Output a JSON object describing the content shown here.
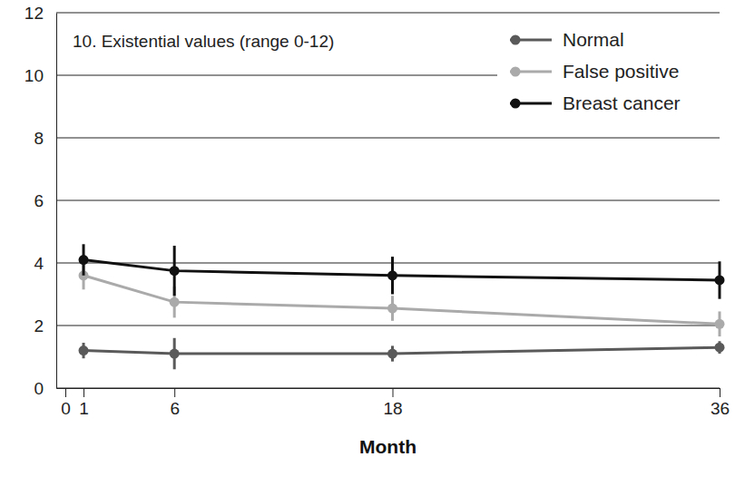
{
  "chart_data": {
    "type": "line",
    "title": "10. Existential values (range 0-12)",
    "x_label": "Month",
    "x": [
      1,
      6,
      18,
      36
    ],
    "xlim": [
      -0.5,
      36
    ],
    "xticks": [
      0,
      1,
      6,
      18,
      36
    ],
    "ylim": [
      0,
      12
    ],
    "yticks": [
      0,
      2,
      4,
      6,
      8,
      10,
      12
    ],
    "grid": true,
    "legend": "top-right",
    "marker": "circle",
    "line_style": "solid",
    "series": [
      {
        "name": "Normal",
        "color": "#5a5a5a",
        "values": [
          1.2,
          1.1,
          1.1,
          1.3
        ],
        "errors": [
          0.25,
          0.5,
          0.25,
          0.2
        ]
      },
      {
        "name": "False positive",
        "color": "#aaaaaa",
        "values": [
          3.6,
          2.75,
          2.55,
          2.05
        ],
        "errors": [
          0.45,
          0.5,
          0.4,
          0.4
        ]
      },
      {
        "name": "Breast cancer",
        "color": "#111111",
        "values": [
          4.1,
          3.75,
          3.6,
          3.45
        ],
        "errors": [
          0.5,
          0.8,
          0.6,
          0.6
        ]
      }
    ]
  }
}
